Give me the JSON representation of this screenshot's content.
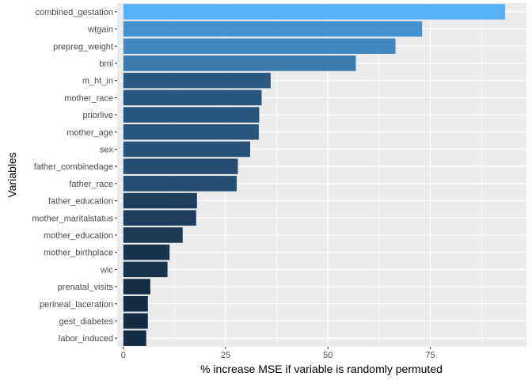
{
  "chart_data": {
    "type": "bar",
    "orientation": "horizontal",
    "title": "",
    "xlabel": "% increase MSE if variable is randomly permuted",
    "ylabel": "Variables",
    "xlim": [
      -1.5,
      98.5
    ],
    "x_ticks": [
      0,
      25,
      50,
      75
    ],
    "x_tick_labels": [
      "0",
      "25",
      "50",
      "75"
    ],
    "grid": true,
    "legend": "none",
    "panel_color": "#ebebeb",
    "grid_color": "#ffffff",
    "color_low": "#132b43",
    "color_high": "#56b1f7",
    "categories": [
      "combined_gestation",
      "wtgain",
      "prepreg_weight",
      "bmi",
      "m_ht_in",
      "mother_race",
      "priorlive",
      "mother_age",
      "sex",
      "father_combinedage",
      "father_race",
      "father_education",
      "mother_maritalstatus",
      "mother_education",
      "mother_birthplace",
      "wic",
      "prenatal_visits",
      "perineal_laceration",
      "gest_diabetes",
      "labor_induced"
    ],
    "values": [
      93.3,
      73.0,
      66.5,
      56.8,
      36.0,
      33.8,
      33.2,
      33.1,
      31.0,
      28.0,
      27.7,
      18.0,
      17.8,
      14.5,
      11.3,
      10.8,
      6.6,
      6.0,
      6.0,
      5.6
    ]
  }
}
